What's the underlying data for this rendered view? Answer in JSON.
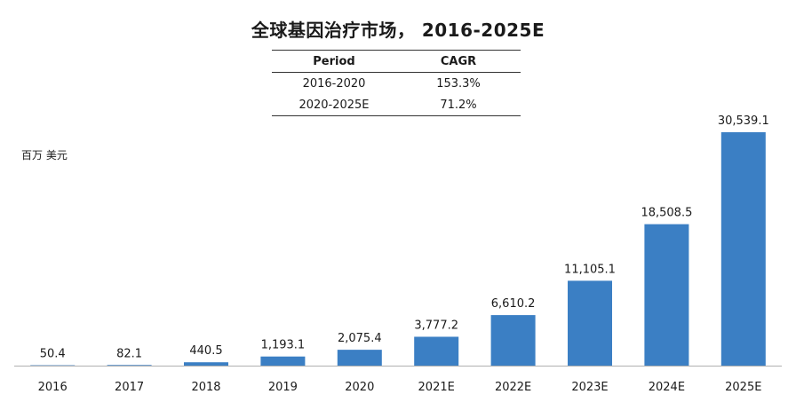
{
  "title": "全球基因治疗市场， 2016-2025E",
  "cagr_table": {
    "headers": [
      "Period",
      "CAGR"
    ],
    "rows": [
      [
        "2016-2020",
        "153.3%"
      ],
      [
        "2020-2025E",
        "71.2%"
      ]
    ]
  },
  "unit_label": "百万 美元",
  "chart_data": {
    "type": "bar",
    "categories": [
      "2016",
      "2017",
      "2018",
      "2019",
      "2020",
      "2021E",
      "2022E",
      "2023E",
      "2024E",
      "2025E"
    ],
    "values": [
      50.4,
      82.1,
      440.5,
      1193.1,
      2075.4,
      3777.2,
      6610.2,
      11105.1,
      18508.5,
      30539.1
    ],
    "value_labels": [
      "50.4",
      "82.1",
      "440.5",
      "1,193.1",
      "2,075.4",
      "3,777.2",
      "6,610.2",
      "11,105.1",
      "18,508.5",
      "30,539.1"
    ],
    "ylabel": "百万 美元",
    "ylim": [
      0,
      30539.1
    ],
    "grid": false,
    "bar_color": "#3b7fc4",
    "axis_color": "#b0b0b0"
  }
}
